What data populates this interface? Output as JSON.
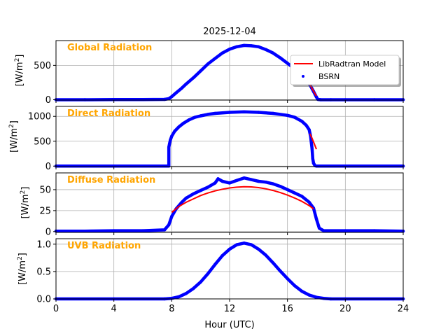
{
  "chart_data": {
    "type": "line",
    "title": "2025-12-04",
    "xlabel": "Hour (UTC)",
    "xlim": [
      0,
      24
    ],
    "x_ticks": [
      0,
      4,
      8,
      12,
      16,
      20,
      24
    ],
    "grid": true,
    "legend": {
      "placement": "top-right of first panel",
      "entries": [
        {
          "name": "LibRadtran Model",
          "style": "line",
          "color": "#ff0000"
        },
        {
          "name": "BSRN",
          "style": "points",
          "color": "#0000ff"
        }
      ]
    },
    "panels": [
      {
        "label": "Global Radiation",
        "ylabel_text": "[W/m",
        "ylabel_sup": "2",
        "ylabel_end": "]",
        "ylim": [
          -5,
          860
        ],
        "y_ticks": [
          0,
          500
        ],
        "series": [
          {
            "name": "LibRadtran Model",
            "color": "#ff0000",
            "x": [
              17.3,
              17.5,
              17.7,
              17.9,
              18.0
            ],
            "y": [
              310,
              240,
              165,
              90,
              55
            ]
          },
          {
            "name": "BSRN",
            "color": "#0000ff",
            "x": [
              0,
              2,
              4,
              6,
              7.5,
              7.8,
              8.0,
              8.3,
              8.7,
              9.0,
              9.5,
              10.0,
              10.5,
              11.0,
              11.5,
              12.0,
              12.5,
              13.0,
              13.5,
              14.0,
              14.5,
              15.0,
              15.5,
              16.0,
              16.5,
              17.0,
              17.3,
              17.6,
              17.8,
              18.0,
              18.1,
              18.3,
              19,
              20,
              22,
              24
            ],
            "y": [
              0,
              0,
              2,
              3,
              5,
              15,
              45,
              100,
              170,
              230,
              320,
              420,
              520,
              600,
              680,
              735,
              770,
              790,
              785,
              770,
              730,
              680,
              610,
              530,
              450,
              360,
              290,
              200,
              120,
              40,
              5,
              0,
              0,
              0,
              0,
              0
            ]
          }
        ]
      },
      {
        "label": "Direct Radiation",
        "ylabel_text": "[W/m",
        "ylabel_sup": "2",
        "ylabel_end": "]",
        "ylim": [
          -10,
          1200
        ],
        "y_ticks": [
          0,
          500,
          1000
        ],
        "series": [
          {
            "name": "LibRadtran Model",
            "color": "#ff0000",
            "x": [
              17.55,
              17.7,
              17.85,
              18.0
            ],
            "y": [
              650,
              560,
              450,
              340
            ]
          },
          {
            "name": "BSRN",
            "color": "#0000ff",
            "x": [
              0,
              4,
              7.8,
              7.8,
              7.85,
              7.9,
              8.0,
              8.2,
              8.5,
              8.8,
              9.2,
              9.6,
              10.0,
              10.5,
              11.0,
              12.0,
              13.0,
              14.0,
              15.0,
              16.0,
              16.5,
              17.0,
              17.3,
              17.5,
              17.6,
              17.7,
              17.75,
              17.8,
              17.9,
              18.0,
              20,
              24
            ],
            "y": [
              0,
              0,
              0,
              380,
              450,
              520,
              600,
              700,
              790,
              860,
              930,
              980,
              1010,
              1040,
              1060,
              1080,
              1090,
              1080,
              1060,
              1020,
              980,
              900,
              820,
              730,
              600,
              350,
              150,
              60,
              10,
              0,
              0,
              0
            ]
          }
        ]
      },
      {
        "label": "Diffuse Radiation",
        "ylabel_text": "[W/m",
        "ylabel_sup": "2",
        "ylabel_end": "]",
        "ylim": [
          -1,
          70
        ],
        "y_ticks": [
          0,
          25,
          50
        ],
        "series": [
          {
            "name": "LibRadtran Model",
            "color": "#ff0000",
            "x": [
              8.0,
              8.5,
              9.0,
              9.5,
              10.0,
              10.5,
              11.0,
              11.5,
              12.0,
              12.5,
              13.0,
              13.5,
              14.0,
              14.5,
              15.0,
              15.5,
              16.0,
              16.5,
              17.0,
              17.5,
              17.8
            ],
            "y": [
              23,
              30,
              35,
              39,
              43,
              46,
              48.5,
              50.5,
              52,
              53,
              53.5,
              53.3,
              52.5,
              51,
              49,
              46.5,
              43.5,
              40,
              36,
              31,
              27
            ]
          },
          {
            "name": "BSRN",
            "color": "#0000ff",
            "x": [
              0,
              2,
              4,
              6,
              7.5,
              7.8,
              8.0,
              8.3,
              8.7,
              9.0,
              9.5,
              10.0,
              10.5,
              11.0,
              11.2,
              11.5,
              12.0,
              12.5,
              13.0,
              13.5,
              14.0,
              14.5,
              15.0,
              15.5,
              16.0,
              16.5,
              17.0,
              17.5,
              17.8,
              18.0,
              18.2,
              18.5,
              20,
              22,
              24
            ],
            "y": [
              0.5,
              0.5,
              1,
              1,
              2,
              8,
              18,
              27,
              35,
              40,
              45,
              49,
              53,
              58,
              63,
              60,
              58,
              61,
              64,
              62,
              60,
              59,
              57,
              54,
              50,
              46,
              42,
              35,
              28,
              15,
              4,
              1,
              1,
              1,
              0.5
            ]
          }
        ]
      },
      {
        "label": "UVB Radiation",
        "ylabel_text": "[W/m",
        "ylabel_sup": "2",
        "ylabel_end": "]",
        "ylim": [
          0,
          1.1
        ],
        "y_ticks": [
          0.0,
          0.5,
          1.0
        ],
        "y_tick_labels": [
          "0.0",
          "0.5",
          "1.0"
        ],
        "series": [
          {
            "name": "BSRN",
            "color": "#0000ff",
            "x": [
              0,
              4,
              7.5,
              8.0,
              8.5,
              9.0,
              9.5,
              10.0,
              10.5,
              11.0,
              11.5,
              12.0,
              12.5,
              13.0,
              13.5,
              14.0,
              14.5,
              15.0,
              15.5,
              16.0,
              16.5,
              17.0,
              17.5,
              18.0,
              18.5,
              19.0,
              20,
              24
            ],
            "y": [
              0,
              0,
              0,
              0.01,
              0.04,
              0.1,
              0.19,
              0.31,
              0.46,
              0.63,
              0.79,
              0.91,
              0.99,
              1.02,
              0.99,
              0.91,
              0.8,
              0.66,
              0.51,
              0.37,
              0.24,
              0.14,
              0.07,
              0.03,
              0.01,
              0,
              0,
              0
            ]
          }
        ]
      }
    ]
  }
}
